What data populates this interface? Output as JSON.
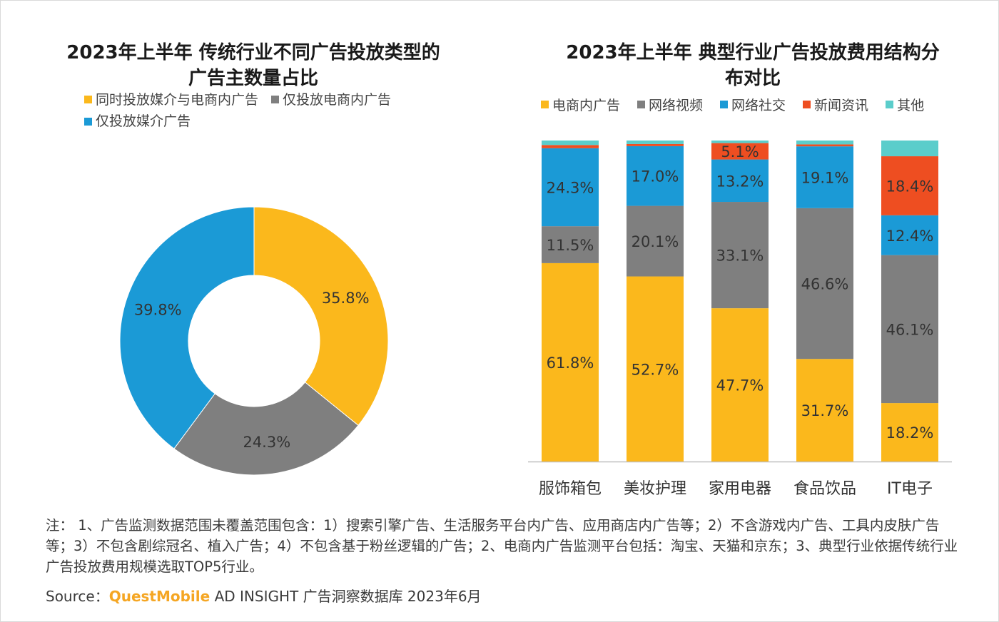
{
  "charts": {
    "donut": {
      "title_line1": "2023年上半年 传统行业不同广告投放类型的",
      "title_line2": "广告主数量占比"
    },
    "bar": {
      "title_line1": "2023年上半年 典型行业广告投放费用结构分",
      "title_line2": "布对比"
    }
  },
  "chart_data": [
    {
      "type": "pie",
      "title": "2023年上半年 传统行业不同广告投放类型的广告主数量占比",
      "legend_placement": "top",
      "slices": [
        {
          "label": "同时投放媒介与电商内广告",
          "value": 35.8,
          "display": "35.8%",
          "color": "#FBB81C"
        },
        {
          "label": "仅投放电商内广告",
          "value": 24.3,
          "display": "24.3%",
          "color": "#7F7F7F"
        },
        {
          "label": "仅投放媒介广告",
          "value": 39.8,
          "display": "39.8%",
          "color": "#1B9AD6"
        }
      ]
    },
    {
      "type": "bar",
      "stacked": true,
      "title": "2023年上半年 典型行业广告投放费用结构分布对比",
      "legend_placement": "top",
      "categories": [
        "服饰箱包",
        "美妆护理",
        "家用电器",
        "食品饮品",
        "IT电子"
      ],
      "ylim": [
        0,
        100
      ],
      "series": [
        {
          "name": "电商内广告",
          "color": "#FBB81C",
          "values": [
            61.8,
            52.7,
            47.7,
            31.7,
            18.2
          ],
          "labels": [
            "61.8%",
            "52.7%",
            "47.7%",
            "31.7%",
            "18.2%"
          ]
        },
        {
          "name": "网络视频",
          "color": "#7F7F7F",
          "values": [
            11.5,
            20.1,
            33.1,
            46.6,
            46.1
          ],
          "labels": [
            "11.5%",
            "20.1%",
            "33.1%",
            "46.6%",
            "46.1%"
          ]
        },
        {
          "name": "网络社交",
          "color": "#1B9AD6",
          "values": [
            24.3,
            17.0,
            13.2,
            19.1,
            12.4
          ],
          "labels": [
            "24.3%",
            "17.0%",
            "13.2%",
            "19.1%",
            "12.4%"
          ]
        },
        {
          "name": "新闻资讯",
          "color": "#EE4E21",
          "values": [
            1.0,
            0.6,
            5.1,
            0.6,
            18.4
          ],
          "labels": [
            "",
            "",
            "5.1%",
            "",
            "18.4%"
          ]
        },
        {
          "name": "其他",
          "color": "#5BCDCB",
          "values": [
            1.4,
            1.0,
            0.8,
            1.2,
            4.9
          ],
          "labels": [
            "",
            "",
            "",
            "",
            ""
          ]
        }
      ]
    }
  ],
  "footer": {
    "note": "注： 1、广告监测数据范围未覆盖范围包含：1）搜索引擎广告、生活服务平台内广告、应用商店内广告等；2）不含游戏内广告、工具内皮肤广告等；3）不包含剧综冠名、植入广告；4）不包含基于粉丝逻辑的广告；2、电商内广告监测平台包括：淘宝、天猫和京东；3、典型行业依据传统行业广告投放费用规模选取TOP5行业。",
    "source_prefix": "Source：",
    "source_brand": "QuestMobile",
    "source_rest": " AD INSIGHT 广告洞察数据库 2023年6月"
  }
}
